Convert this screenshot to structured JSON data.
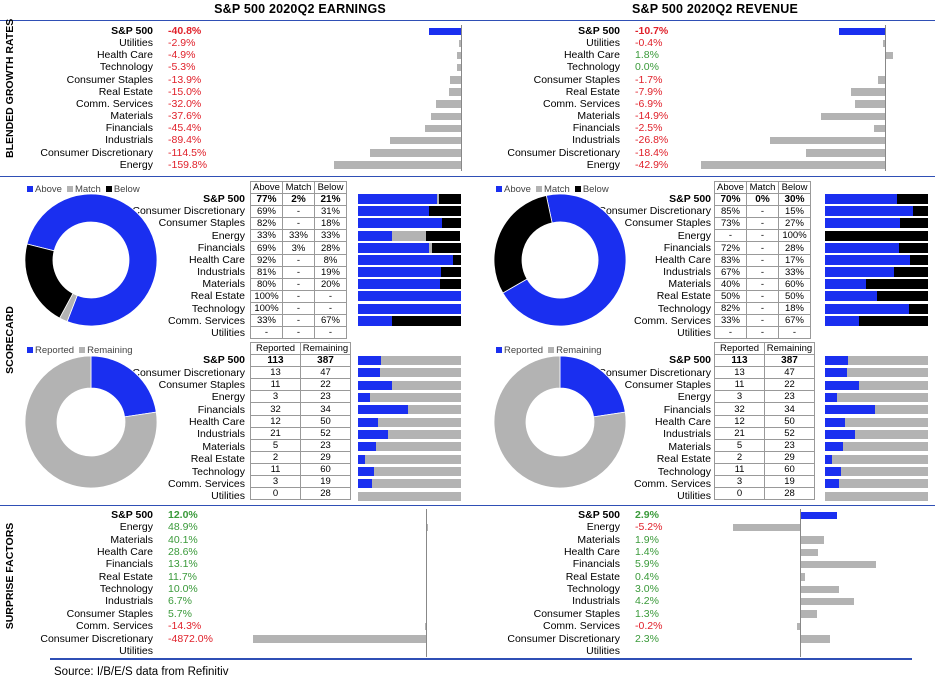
{
  "titles": {
    "earnings": "S&P 500 2020Q2 EARNINGS",
    "revenue": "S&P 500 2020Q2 REVENUE"
  },
  "section_labels": {
    "growth": "BLENDED GROWTH RATES",
    "scorecard": "SCORECARD",
    "surprise": "SURPRISE FACTORS"
  },
  "source": "Source: I/B/E/S data from Refinitiv",
  "legend_scorecard": [
    "Above",
    "Match",
    "Below"
  ],
  "legend_reported": [
    "Reported",
    "Remaining"
  ],
  "colors": {
    "blue": "#1a2ff0",
    "gray": "#b3b3b3",
    "black": "#000000",
    "red": "#e0202a",
    "green": "#3a9a3a"
  },
  "scorecard_headers": [
    "Above",
    "Match",
    "Below"
  ],
  "reported_headers": [
    "Reported",
    "Remaining"
  ],
  "chart_data": [
    {
      "type": "bar",
      "title": "S&P 500 2020Q2 EARNINGS - BLENDED GROWTH RATES",
      "categories": [
        "S&P 500",
        "Utilities",
        "Health Care",
        "Technology",
        "Consumer Staples",
        "Real Estate",
        "Comm. Services",
        "Materials",
        "Financials",
        "Industrials",
        "Consumer Discretionary",
        "Energy"
      ],
      "values": [
        -40.8,
        -2.9,
        -4.9,
        -5.3,
        -13.9,
        -15.0,
        -32.0,
        -37.6,
        -45.4,
        -89.4,
        -114.5,
        -159.8
      ],
      "labels": [
        "-40.8%",
        "-2.9%",
        "-4.9%",
        "-5.3%",
        "-13.9%",
        "-15.0%",
        "-32.0%",
        "-37.6%",
        "-45.4%",
        "-89.4%",
        "-114.5%",
        "-159.8%"
      ]
    },
    {
      "type": "bar",
      "title": "S&P 500 2020Q2 REVENUE - BLENDED GROWTH RATES",
      "categories": [
        "S&P 500",
        "Utilities",
        "Health Care",
        "Technology",
        "Consumer Staples",
        "Real Estate",
        "Comm. Services",
        "Materials",
        "Financials",
        "Industrials",
        "Consumer Discretionary",
        "Energy"
      ],
      "values": [
        -10.7,
        -0.4,
        1.8,
        0.0,
        -1.7,
        -7.9,
        -6.9,
        -14.9,
        -2.5,
        -26.8,
        -18.4,
        -42.9
      ],
      "labels": [
        "-10.7%",
        "-0.4%",
        "1.8%",
        "0.0%",
        "-1.7%",
        "-7.9%",
        "-6.9%",
        "-14.9%",
        "-2.5%",
        "-26.8%",
        "-18.4%",
        "-42.9%"
      ]
    },
    {
      "type": "table",
      "title": "EARNINGS SCORECARD",
      "categories": [
        "S&P 500",
        "Consumer Discretionary",
        "Consumer Staples",
        "Energy",
        "Financials",
        "Health Care",
        "Industrials",
        "Materials",
        "Real Estate",
        "Technology",
        "Comm. Services",
        "Utilities"
      ],
      "rows": [
        [
          "77%",
          "2%",
          "21%"
        ],
        [
          "69%",
          "-",
          "31%"
        ],
        [
          "82%",
          "-",
          "18%"
        ],
        [
          "33%",
          "33%",
          "33%"
        ],
        [
          "69%",
          "3%",
          "28%"
        ],
        [
          "92%",
          "-",
          "8%"
        ],
        [
          "81%",
          "-",
          "19%"
        ],
        [
          "80%",
          "-",
          "20%"
        ],
        [
          "100%",
          "-",
          "-"
        ],
        [
          "100%",
          "-",
          "-"
        ],
        [
          "33%",
          "-",
          "67%"
        ],
        [
          "-",
          "-",
          "-"
        ]
      ],
      "bars": [
        [
          77,
          2,
          21
        ],
        [
          69,
          0,
          31
        ],
        [
          82,
          0,
          18
        ],
        [
          33,
          33,
          33
        ],
        [
          69,
          3,
          28
        ],
        [
          92,
          0,
          8
        ],
        [
          81,
          0,
          19
        ],
        [
          80,
          0,
          20
        ],
        [
          100,
          0,
          0
        ],
        [
          100,
          0,
          0
        ],
        [
          33,
          0,
          67
        ],
        [
          0,
          0,
          0
        ]
      ],
      "donut": {
        "above": 77,
        "match": 2,
        "below": 21
      }
    },
    {
      "type": "table",
      "title": "REVENUE SCORECARD",
      "categories": [
        "S&P 500",
        "Consumer Discretionary",
        "Consumer Staples",
        "Energy",
        "Financials",
        "Health Care",
        "Industrials",
        "Materials",
        "Real Estate",
        "Technology",
        "Comm. Services",
        "Utilities"
      ],
      "rows": [
        [
          "70%",
          "0%",
          "30%"
        ],
        [
          "85%",
          "-",
          "15%"
        ],
        [
          "73%",
          "-",
          "27%"
        ],
        [
          "-",
          "-",
          "100%"
        ],
        [
          "72%",
          "-",
          "28%"
        ],
        [
          "83%",
          "-",
          "17%"
        ],
        [
          "67%",
          "-",
          "33%"
        ],
        [
          "40%",
          "-",
          "60%"
        ],
        [
          "50%",
          "-",
          "50%"
        ],
        [
          "82%",
          "-",
          "18%"
        ],
        [
          "33%",
          "-",
          "67%"
        ],
        [
          "-",
          "-",
          "-"
        ]
      ],
      "bars": [
        [
          70,
          0,
          30
        ],
        [
          85,
          0,
          15
        ],
        [
          73,
          0,
          27
        ],
        [
          0,
          0,
          100
        ],
        [
          72,
          0,
          28
        ],
        [
          83,
          0,
          17
        ],
        [
          67,
          0,
          33
        ],
        [
          40,
          0,
          60
        ],
        [
          50,
          0,
          50
        ],
        [
          82,
          0,
          18
        ],
        [
          33,
          0,
          67
        ],
        [
          0,
          0,
          0
        ]
      ],
      "donut": {
        "above": 70,
        "match": 0,
        "below": 30
      }
    },
    {
      "type": "table",
      "title": "REPORTED",
      "categories": [
        "S&P 500",
        "Consumer Discretionary",
        "Consumer Staples",
        "Energy",
        "Financials",
        "Health Care",
        "Industrials",
        "Materials",
        "Real Estate",
        "Technology",
        "Comm. Services",
        "Utilities"
      ],
      "reported": [
        113,
        13,
        11,
        3,
        32,
        12,
        21,
        5,
        2,
        11,
        3,
        0
      ],
      "remaining": [
        387,
        47,
        22,
        23,
        34,
        50,
        52,
        23,
        29,
        60,
        19,
        28
      ]
    },
    {
      "type": "bar",
      "title": "S&P 500 2020Q2 EARNINGS - SURPRISE FACTORS",
      "categories": [
        "S&P 500",
        "Energy",
        "Materials",
        "Health Care",
        "Financials",
        "Real Estate",
        "Technology",
        "Industrials",
        "Consumer Staples",
        "Comm. Services",
        "Consumer Discretionary",
        "Utilities"
      ],
      "values": [
        12.0,
        48.9,
        40.1,
        28.6,
        13.1,
        11.7,
        10.0,
        6.7,
        5.7,
        -14.3,
        -4872.0,
        null
      ],
      "labels": [
        "12.0%",
        "48.9%",
        "40.1%",
        "28.6%",
        "13.1%",
        "11.7%",
        "10.0%",
        "6.7%",
        "5.7%",
        "-14.3%",
        "-4872.0%",
        ""
      ]
    },
    {
      "type": "bar",
      "title": "S&P 500 2020Q2 REVENUE - SURPRISE FACTORS",
      "categories": [
        "S&P 500",
        "Energy",
        "Materials",
        "Health Care",
        "Financials",
        "Real Estate",
        "Technology",
        "Industrials",
        "Consumer Staples",
        "Comm. Services",
        "Consumer Discretionary",
        "Utilities"
      ],
      "values": [
        2.9,
        -5.2,
        1.9,
        1.4,
        5.9,
        0.4,
        3.0,
        4.2,
        1.3,
        -0.2,
        2.3,
        null
      ],
      "labels": [
        "2.9%",
        "-5.2%",
        "1.9%",
        "1.4%",
        "5.9%",
        "0.4%",
        "3.0%",
        "4.2%",
        "1.3%",
        "-0.2%",
        "2.3%",
        ""
      ]
    }
  ]
}
